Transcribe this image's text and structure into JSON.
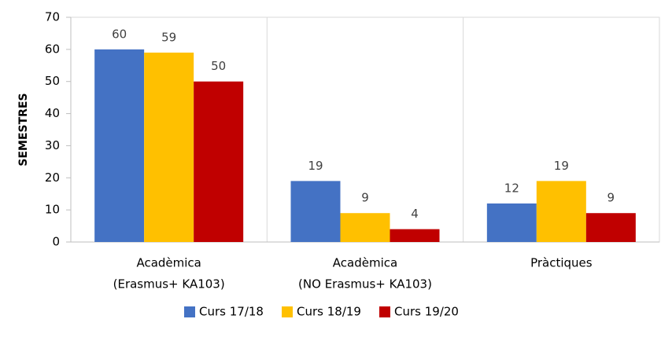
{
  "chart_data": {
    "type": "bar",
    "categories": [
      [
        "Acadèmica",
        "(Erasmus+ KA103)"
      ],
      [
        "Acadèmica",
        "(NO Erasmus+ KA103)"
      ],
      [
        "Pràctiques"
      ]
    ],
    "series": [
      {
        "name": "Curs 17/18",
        "color": "#4472c4",
        "values": [
          60,
          19,
          12
        ]
      },
      {
        "name": "Curs 18/19",
        "color": "#ffc000",
        "values": [
          59,
          9,
          19
        ]
      },
      {
        "name": "Curs 19/20",
        "color": "#c00000",
        "values": [
          50,
          4,
          9
        ]
      }
    ],
    "ylabel": "SEMESTRES",
    "ylim": [
      0,
      70
    ],
    "yticks": [
      0,
      10,
      20,
      30,
      40,
      50,
      60,
      70
    ],
    "legend": "bottom"
  }
}
